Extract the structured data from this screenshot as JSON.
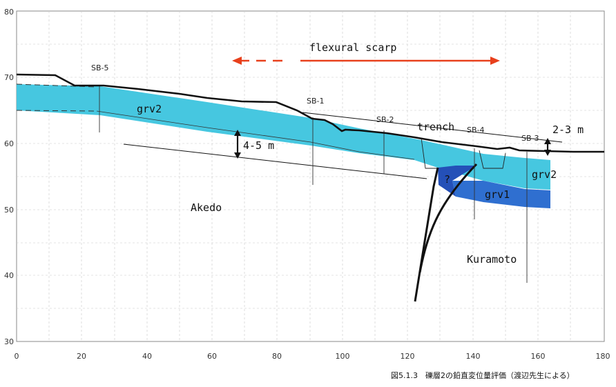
{
  "axes": {
    "x_ticks": [
      "0",
      "20",
      "40",
      "60",
      "80",
      "100",
      "120",
      "140",
      "160",
      "180"
    ],
    "y_ticks": [
      "30",
      "40",
      "50",
      "60",
      "70",
      "80"
    ]
  },
  "labels": {
    "flexural_scarp": "flexural scarp",
    "sb5": "SB-5",
    "sb1": "SB-1",
    "sb2": "SB-2",
    "sb4": "SB-4",
    "sb3": "SB-3",
    "trench": "trench",
    "grv2_left": "grv2",
    "grv2_right": "grv2",
    "grv1": "grv1",
    "question": "?",
    "offset_large": "4-5 m",
    "offset_small": "2-3 m",
    "akedo": "Akedo",
    "kuramoto": "Kuramoto"
  },
  "caption": "図5.1.3　礫層2の鉛直変位量評価（渡辺先生による）",
  "colors": {
    "grv2": "#46c7e0",
    "grv1": "#2f6fd0",
    "question_unit": "#2450b8",
    "arrow": "#e8401c",
    "line": "#111111"
  }
}
